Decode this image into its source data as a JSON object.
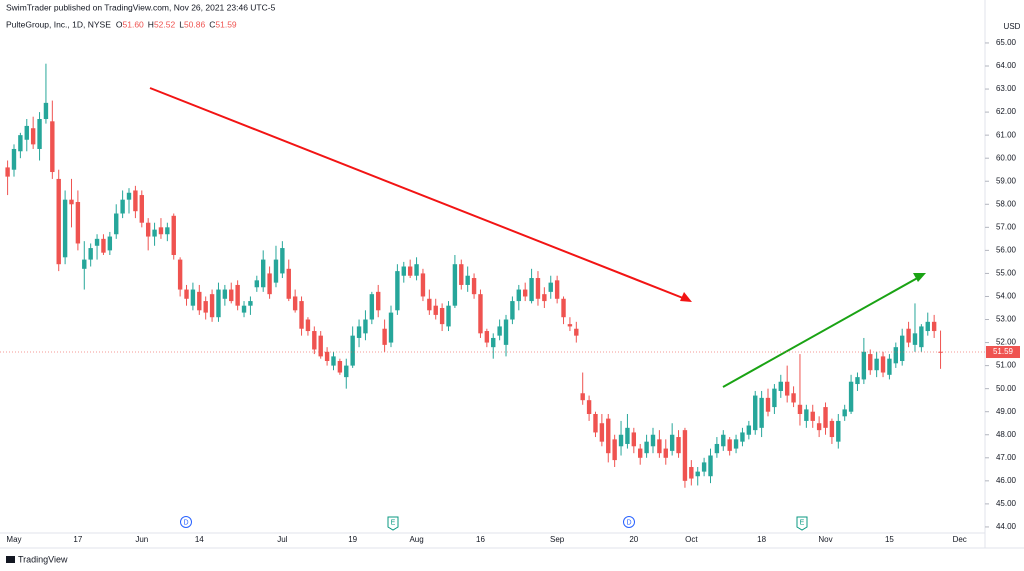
{
  "header": {
    "published": "SwimTrader published on TradingView.com, Nov 26, 2021 23:46 UTC-5",
    "footer": "TradingView"
  },
  "chart_data": {
    "type": "candlestick",
    "title": "PulteGroup, Inc., 1D, NYSE",
    "ohlc_legend": [
      {
        "label": "O",
        "value": "51.60"
      },
      {
        "label": "H",
        "value": "52.52"
      },
      {
        "label": "L",
        "value": "50.86"
      },
      {
        "label": "C",
        "value": "51.59"
      }
    ],
    "currency": "USD",
    "up_color": "#26a69a",
    "down_color": "#ef5350",
    "grid": false,
    "events": [
      "D",
      "E",
      "D",
      "E"
    ],
    "categories": [
      null,
      "May",
      null,
      null,
      null,
      null,
      null,
      null,
      null,
      null,
      null,
      "17",
      null,
      null,
      null,
      null,
      null,
      null,
      null,
      null,
      null,
      "Jun",
      null,
      null,
      null,
      null,
      null,
      null,
      null,
      null,
      "14",
      null,
      null,
      null,
      null,
      null,
      null,
      null,
      null,
      null,
      null,
      null,
      null,
      "Jul",
      null,
      null,
      null,
      null,
      null,
      null,
      null,
      null,
      null,
      null,
      "19",
      null,
      null,
      null,
      null,
      null,
      null,
      null,
      null,
      null,
      "Aug",
      null,
      null,
      null,
      null,
      null,
      null,
      null,
      null,
      null,
      "16",
      null,
      null,
      null,
      null,
      null,
      null,
      null,
      null,
      null,
      null,
      null,
      "Sep",
      null,
      null,
      null,
      null,
      null,
      null,
      null,
      null,
      null,
      null,
      null,
      "20",
      null,
      null,
      null,
      null,
      null,
      null,
      null,
      null,
      "Oct",
      null,
      null,
      null,
      null,
      null,
      null,
      null,
      null,
      null,
      null,
      "18",
      null,
      null,
      null,
      null,
      null,
      null,
      null,
      null,
      null,
      "Nov",
      null,
      null,
      null,
      null,
      null,
      null,
      null,
      null,
      null,
      "15",
      null,
      null,
      null,
      null,
      null,
      null,
      null,
      null,
      null,
      null,
      "Dec"
    ],
    "open": [
      59.6,
      59.5,
      60.3,
      60.8,
      61.3,
      60.4,
      61.7,
      61.6,
      59.1,
      55.7,
      58.2,
      58.1,
      55.2,
      55.6,
      56.2,
      56.5,
      56.0,
      56.7,
      57.6,
      58.2,
      58.6,
      58.4,
      57.2,
      56.6,
      57.0,
      56.7,
      57.5,
      55.6,
      54.3,
      53.6,
      54.2,
      53.8,
      54.1,
      53.1,
      53.9,
      54.3,
      54.5,
      53.3,
      53.6,
      54.4,
      54.4,
      55.0,
      54.6,
      55.0,
      55.2,
      54.0,
      53.8,
      53.0,
      52.5,
      52.3,
      51.6,
      51.0,
      51.2,
      50.5,
      51.0,
      52.2,
      52.4,
      53.0,
      54.2,
      52.6,
      52.0,
      53.4,
      54.9,
      55.3,
      54.9,
      55.0,
      53.9,
      53.6,
      53.5,
      52.7,
      53.6,
      55.4,
      54.5,
      54.8,
      54.1,
      52.5,
      51.8,
      52.3,
      51.9,
      53.0,
      53.8,
      54.3,
      53.8,
      54.8,
      54.1,
      54.2,
      54.7,
      53.9,
      52.8,
      52.6,
      49.8,
      49.5,
      48.9,
      48.5,
      48.7,
      47.8,
      47.5,
      47.6,
      48.1,
      47.4,
      47.2,
      47.5,
      47.8,
      47.4,
      47.3,
      47.9,
      48.2,
      46.6,
      46.2,
      46.4,
      46.2,
      47.2,
      47.5,
      47.8,
      47.4,
      47.7,
      48.0,
      48.2,
      48.3,
      49.6,
      49.2,
      49.9,
      50.3,
      49.8,
      49.3,
      48.6,
      49.0,
      48.5,
      49.2,
      48.6,
      47.7,
      48.8,
      49.0,
      50.2,
      50.4,
      51.5,
      50.8,
      51.4,
      50.6,
      51.1,
      51.2,
      52.6,
      51.9,
      51.8,
      52.5,
      52.9,
      51.6,
      null,
      null,
      null
    ],
    "high": [
      59.9,
      60.6,
      61.1,
      61.7,
      61.8,
      62.0,
      64.1,
      62.5,
      59.5,
      58.6,
      59.1,
      58.6,
      56.4,
      56.3,
      56.7,
      56.7,
      56.8,
      58.0,
      58.6,
      58.7,
      58.8,
      58.6,
      57.4,
      57.2,
      57.4,
      57.2,
      57.6,
      55.7,
      54.5,
      54.6,
      54.5,
      54.0,
      54.3,
      54.6,
      54.5,
      54.6,
      54.7,
      53.8,
      54.0,
      54.9,
      56.0,
      55.3,
      56.2,
      56.4,
      55.6,
      54.3,
      54.0,
      53.1,
      52.7,
      52.5,
      51.8,
      51.6,
      51.3,
      51.3,
      52.7,
      53.0,
      53.4,
      54.2,
      54.5,
      53.0,
      53.6,
      55.4,
      55.5,
      55.6,
      55.7,
      55.2,
      54.3,
      53.9,
      53.7,
      53.8,
      55.8,
      55.6,
      55.3,
      55.0,
      54.3,
      52.6,
      52.4,
      53.0,
      53.2,
      54.0,
      54.5,
      54.6,
      55.2,
      55.1,
      54.4,
      54.9,
      54.9,
      54.0,
      53.1,
      52.9,
      50.7,
      49.7,
      49.0,
      48.9,
      48.9,
      48.0,
      48.6,
      48.9,
      48.3,
      47.6,
      48.0,
      48.3,
      48.2,
      47.8,
      48.5,
      48.2,
      48.3,
      46.9,
      46.6,
      47.0,
      47.4,
      47.9,
      48.2,
      47.9,
      48.0,
      48.3,
      48.6,
      49.9,
      49.9,
      50.0,
      50.2,
      50.6,
      51.0,
      50.1,
      51.5,
      49.3,
      49.3,
      48.8,
      49.4,
      48.7,
      48.9,
      49.3,
      50.6,
      50.7,
      52.2,
      51.7,
      51.6,
      51.6,
      51.5,
      52.0,
      52.6,
      52.9,
      53.7,
      52.8,
      53.3,
      53.2,
      52.52,
      null,
      null,
      null
    ],
    "low": [
      58.4,
      59.2,
      60.0,
      60.3,
      60.4,
      59.9,
      61.5,
      59.1,
      55.1,
      55.4,
      57.0,
      56.0,
      54.3,
      55.3,
      55.6,
      55.8,
      55.8,
      56.5,
      57.4,
      57.6,
      57.4,
      57.0,
      56.0,
      56.2,
      56.5,
      56.4,
      55.6,
      54.0,
      53.6,
      53.4,
      53.2,
      53.0,
      52.9,
      52.9,
      53.6,
      53.7,
      53.4,
      53.1,
      53.2,
      54.2,
      54.2,
      53.9,
      54.4,
      54.8,
      53.8,
      53.3,
      52.3,
      52.3,
      51.5,
      51.3,
      51.0,
      50.8,
      50.6,
      50.0,
      50.9,
      51.8,
      52.1,
      52.8,
      53.1,
      51.6,
      51.8,
      53.2,
      54.6,
      54.8,
      54.7,
      53.8,
      53.2,
      53.0,
      52.5,
      52.5,
      53.5,
      54.3,
      54.2,
      53.9,
      52.2,
      51.8,
      51.3,
      52.1,
      51.4,
      52.8,
      53.4,
      53.8,
      53.7,
      53.6,
      53.5,
      53.9,
      53.7,
      52.8,
      52.5,
      52.0,
      49.3,
      48.6,
      47.9,
      47.5,
      46.8,
      46.6,
      47.1,
      47.4,
      47.2,
      46.7,
      47.0,
      47.2,
      47.0,
      46.7,
      47.1,
      47.0,
      45.7,
      45.8,
      45.8,
      46.2,
      45.9,
      47.0,
      47.3,
      47.1,
      47.2,
      47.5,
      47.8,
      48.0,
      47.9,
      48.8,
      48.9,
      49.6,
      49.4,
      49.2,
      48.4,
      48.3,
      48.3,
      47.9,
      48.0,
      47.6,
      47.4,
      48.6,
      48.9,
      49.9,
      50.2,
      50.6,
      50.5,
      50.5,
      50.4,
      50.9,
      51.0,
      51.8,
      51.6,
      51.6,
      52.3,
      52.2,
      50.86,
      null,
      null,
      null
    ],
    "close": [
      59.2,
      60.4,
      61.0,
      61.4,
      60.6,
      61.7,
      62.4,
      59.4,
      55.4,
      58.2,
      58.0,
      56.3,
      55.6,
      56.1,
      56.5,
      55.9,
      56.6,
      57.6,
      58.2,
      58.5,
      57.7,
      57.2,
      56.6,
      56.9,
      56.7,
      57.0,
      55.8,
      54.3,
      53.9,
      54.3,
      53.4,
      53.3,
      53.1,
      54.3,
      54.3,
      53.8,
      53.6,
      53.6,
      53.8,
      54.7,
      55.6,
      54.1,
      55.6,
      56.1,
      53.9,
      53.4,
      52.6,
      52.5,
      51.7,
      51.4,
      51.2,
      51.4,
      50.7,
      51.0,
      52.3,
      52.7,
      53.0,
      54.1,
      53.4,
      51.9,
      53.3,
      55.1,
      55.3,
      54.9,
      55.4,
      54.0,
      53.4,
      53.2,
      52.8,
      53.6,
      55.4,
      54.5,
      54.9,
      54.1,
      52.4,
      52.0,
      52.2,
      52.7,
      53.0,
      53.8,
      54.3,
      54.0,
      54.8,
      53.9,
      53.8,
      54.6,
      53.9,
      53.1,
      52.7,
      52.3,
      49.5,
      48.9,
      48.1,
      47.7,
      47.2,
      46.9,
      48.0,
      48.3,
      47.5,
      47.0,
      47.7,
      48.0,
      47.2,
      47.0,
      48.0,
      47.2,
      46.0,
      46.1,
      46.4,
      46.8,
      47.1,
      47.6,
      48.0,
      47.3,
      47.8,
      48.1,
      48.4,
      49.7,
      49.6,
      49.0,
      50.0,
      50.3,
      49.7,
      49.4,
      48.9,
      49.1,
      48.6,
      48.2,
      48.3,
      47.9,
      48.6,
      49.1,
      50.3,
      50.5,
      51.6,
      50.8,
      51.3,
      50.7,
      51.3,
      51.8,
      52.3,
      52.0,
      52.4,
      52.7,
      52.9,
      52.5,
      51.59,
      null,
      null,
      null
    ],
    "ylim": [
      43.65,
      66.43
    ],
    "yticks": [
      {
        "value": 44,
        "label": "44.00"
      },
      {
        "value": 45,
        "label": "45.00"
      },
      {
        "value": 46,
        "label": "46.00"
      },
      {
        "value": 47,
        "label": "47.00"
      },
      {
        "value": 48,
        "label": "48.00"
      },
      {
        "value": 49,
        "label": "49.00"
      },
      {
        "value": 50,
        "label": "50.00"
      },
      {
        "value": 51,
        "label": "51.00"
      },
      {
        "value": 52,
        "label": "52.00"
      },
      {
        "value": 53,
        "label": "53.00"
      },
      {
        "value": 54,
        "label": "54.00"
      },
      {
        "value": 55,
        "label": "55.00"
      },
      {
        "value": 56,
        "label": "56.00"
      },
      {
        "value": 57,
        "label": "57.00"
      },
      {
        "value": 58,
        "label": "58.00"
      },
      {
        "value": 59,
        "label": "59.00"
      },
      {
        "value": 60,
        "label": "60.00"
      },
      {
        "value": 61,
        "label": "61.00"
      },
      {
        "value": 62,
        "label": "62.00"
      },
      {
        "value": 63,
        "label": "63.00"
      },
      {
        "value": 64,
        "label": "64.00"
      },
      {
        "value": 65,
        "label": "65.00"
      }
    ]
  }
}
